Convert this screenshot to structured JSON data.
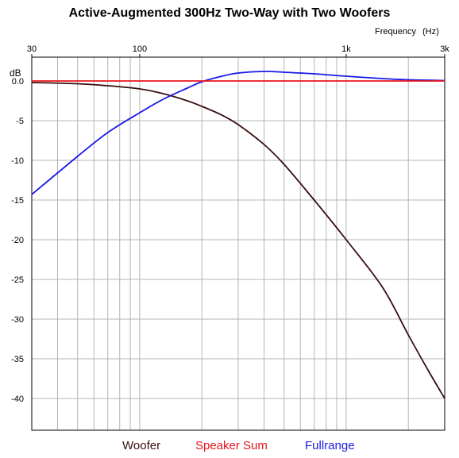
{
  "chart_data": {
    "type": "line",
    "title": "Active-Augmented 300Hz Two-Way with Two Woofers",
    "xlabel": "Frequency",
    "xunit": "(Hz)",
    "ylabel": "dB",
    "xscale": "log",
    "xlim": [
      30,
      3000
    ],
    "ylim": [
      -44,
      3
    ],
    "grid": true,
    "legend_position": "bottom",
    "x_ticks": [
      {
        "value": 30,
        "label": "30"
      },
      {
        "value": 100,
        "label": "100"
      },
      {
        "value": 1000,
        "label": "1k"
      },
      {
        "value": 3000,
        "label": "3k"
      }
    ],
    "y_ticks": [
      0,
      -5,
      -10,
      -15,
      -20,
      -25,
      -30,
      -35,
      -40
    ],
    "y_tick_labels": [
      "0.0",
      "-5",
      "-10",
      "-15",
      "-20",
      "-25",
      "-30",
      "-35",
      "-40"
    ],
    "series": [
      {
        "name": "Woofer",
        "color": "#3a0e0e",
        "points": [
          [
            30,
            -0.2
          ],
          [
            50,
            -0.35
          ],
          [
            70,
            -0.6
          ],
          [
            100,
            -1.0
          ],
          [
            130,
            -1.6
          ],
          [
            170,
            -2.5
          ],
          [
            200,
            -3.2
          ],
          [
            250,
            -4.3
          ],
          [
            300,
            -5.5
          ],
          [
            400,
            -8.0
          ],
          [
            500,
            -10.5
          ],
          [
            700,
            -15.0
          ],
          [
            1000,
            -20.0
          ],
          [
            1500,
            -26.0
          ],
          [
            2000,
            -32.0
          ],
          [
            2500,
            -36.5
          ],
          [
            3000,
            -40.0
          ]
        ]
      },
      {
        "name": "Speaker Sum",
        "color": "#e8141c",
        "points": [
          [
            30,
            0.0
          ],
          [
            3000,
            0.0
          ]
        ]
      },
      {
        "name": "Fullrange",
        "color": "#1a1ae6",
        "points": [
          [
            30,
            -14.3
          ],
          [
            50,
            -9.5
          ],
          [
            70,
            -6.5
          ],
          [
            100,
            -4.0
          ],
          [
            130,
            -2.3
          ],
          [
            170,
            -0.9
          ],
          [
            200,
            -0.1
          ],
          [
            250,
            0.6
          ],
          [
            300,
            1.0
          ],
          [
            400,
            1.2
          ],
          [
            500,
            1.1
          ],
          [
            700,
            0.9
          ],
          [
            1000,
            0.6
          ],
          [
            1500,
            0.3
          ],
          [
            2000,
            0.15
          ],
          [
            2500,
            0.1
          ],
          [
            3000,
            0.05
          ]
        ]
      }
    ]
  }
}
